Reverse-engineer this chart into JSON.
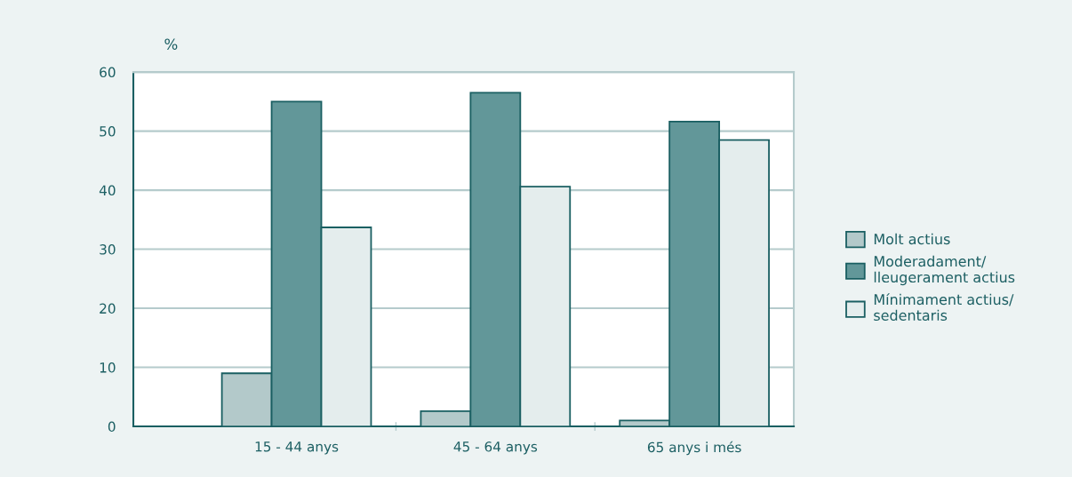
{
  "chart_data": {
    "type": "bar",
    "ylabel": "%",
    "categories": [
      "15 - 44 anys",
      "45 - 64 anys",
      "65 anys i més"
    ],
    "series": [
      {
        "name": "Molt actius",
        "color": "#b3c9ca",
        "values": [
          9.0,
          2.6,
          1.0
        ]
      },
      {
        "name": "Moderadament/\nlleugerament actius",
        "color": "#629799",
        "values": [
          55.0,
          56.5,
          51.6
        ]
      },
      {
        "name": "Mínimament actius/\nsedentaris",
        "color": "#e4eded",
        "values": [
          33.7,
          40.6,
          48.5
        ]
      }
    ],
    "ylim": [
      0,
      60
    ],
    "yticks": [
      0,
      10,
      20,
      30,
      40,
      50,
      60
    ],
    "grid": "y",
    "legend": "right"
  }
}
